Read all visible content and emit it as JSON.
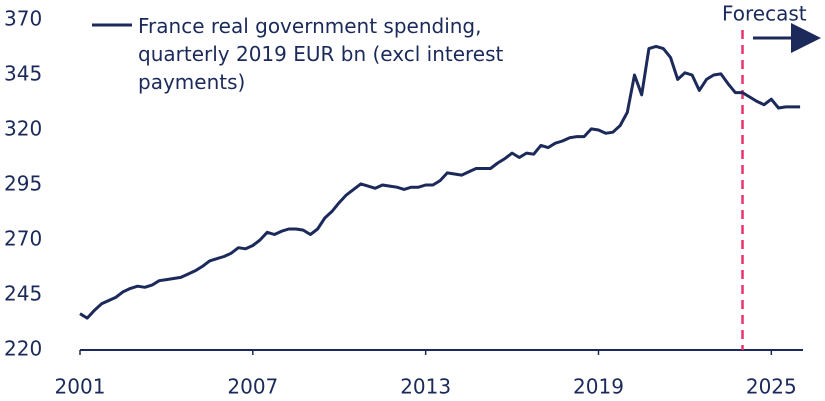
{
  "chart_data": {
    "type": "line",
    "x": [
      2001,
      2001.25,
      2001.5,
      2001.75,
      2002,
      2002.25,
      2002.5,
      2002.75,
      2003,
      2003.25,
      2003.5,
      2003.75,
      2004,
      2004.25,
      2004.5,
      2004.75,
      2005,
      2005.25,
      2005.5,
      2005.75,
      2006,
      2006.25,
      2006.5,
      2006.75,
      2007,
      2007.25,
      2007.5,
      2007.75,
      2008,
      2008.25,
      2008.5,
      2008.75,
      2009,
      2009.25,
      2009.5,
      2009.75,
      2010,
      2010.25,
      2010.5,
      2010.75,
      2011,
      2011.25,
      2011.5,
      2011.75,
      2012,
      2012.25,
      2012.5,
      2012.75,
      2013,
      2013.25,
      2013.5,
      2013.75,
      2014,
      2014.25,
      2014.5,
      2014.75,
      2015,
      2015.25,
      2015.5,
      2015.75,
      2016,
      2016.25,
      2016.5,
      2016.75,
      2017,
      2017.25,
      2017.5,
      2017.75,
      2018,
      2018.25,
      2018.5,
      2018.75,
      2019,
      2019.25,
      2019.5,
      2019.75,
      2020,
      2020.25,
      2020.5,
      2020.75,
      2021,
      2021.25,
      2021.5,
      2021.75,
      2022,
      2022.25,
      2022.5,
      2022.75,
      2023,
      2023.25,
      2023.5,
      2023.75,
      2024,
      2024.25,
      2024.5,
      2024.75,
      2025,
      2025.25,
      2025.5,
      2025.75,
      2026
    ],
    "series": [
      {
        "name": "France real government spending, quarterly 2019 EUR bn (excl interest payments)",
        "color": "#1b2a5a",
        "values": [
          236.5,
          234.5,
          238,
          241,
          242.5,
          244,
          246.5,
          248,
          249,
          248.5,
          249.5,
          251.5,
          252,
          252.5,
          253,
          254.5,
          256,
          258,
          260.5,
          261.5,
          262.5,
          264,
          266.5,
          266,
          267.5,
          270,
          273.5,
          272.5,
          274,
          275,
          275,
          274.5,
          272.5,
          275,
          280,
          283,
          287,
          290.5,
          293,
          295.5,
          294.5,
          293.5,
          295,
          294.5,
          294,
          293,
          294,
          294,
          295,
          295,
          297,
          300.5,
          300,
          299.5,
          301,
          302.5,
          302.5,
          302.5,
          305,
          307,
          309.5,
          307.5,
          309.5,
          309,
          313,
          312,
          314,
          315,
          316.5,
          317,
          317,
          320.5,
          320,
          318.5,
          319,
          322,
          328,
          345,
          336,
          357,
          358,
          357,
          353,
          343,
          346,
          345,
          338,
          343,
          345,
          345.5,
          341,
          337,
          337,
          335,
          333,
          331.5,
          334,
          330,
          330.5,
          330.5,
          330.5
        ]
      }
    ],
    "xlim": [
      2001,
      2026.1
    ],
    "xticks": [
      2001,
      2007,
      2013,
      2019,
      2025
    ],
    "ylim": [
      220,
      370
    ],
    "yticks": [
      220,
      245,
      270,
      295,
      320,
      345,
      370
    ],
    "forecast_start": 2024,
    "annotation": "Forecast"
  }
}
